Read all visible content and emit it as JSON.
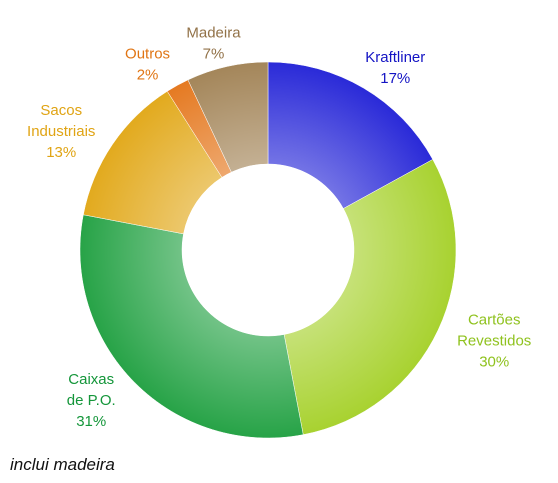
{
  "chart_data": {
    "type": "donut",
    "categories": [
      [
        "Kraftliner"
      ],
      [
        "Cartões",
        "Revestidos"
      ],
      [
        "Caixas",
        "de P.O."
      ],
      [
        "Sacos",
        "Industriais"
      ],
      [
        "Outros"
      ],
      [
        "Madeira"
      ]
    ],
    "values": [
      17,
      30,
      31,
      13,
      2,
      7
    ],
    "value_labels": [
      "17%",
      "30%",
      "31%",
      "13%",
      "2%",
      "7%"
    ],
    "colors": [
      "#2a2ad8",
      "#a8d230",
      "#27a347",
      "#e2aa1e",
      "#e57a22",
      "#a4865a"
    ],
    "label_colors": [
      "#1414c4",
      "#8fc21e",
      "#14963a",
      "#e0a414",
      "#e07514",
      "#927248"
    ],
    "footnote": "inclui madeira"
  }
}
